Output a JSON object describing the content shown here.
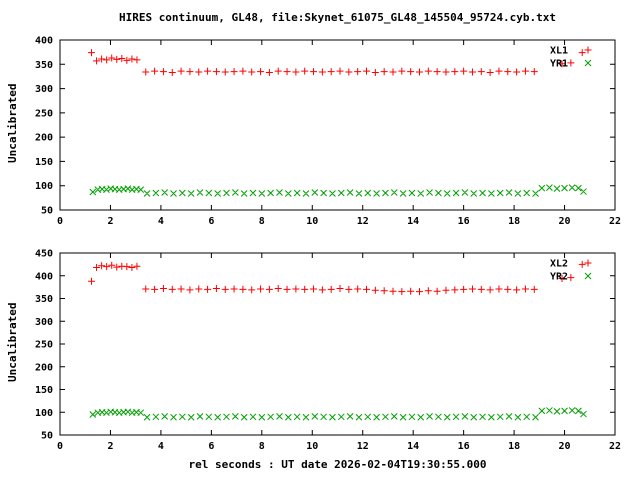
{
  "colors": {
    "background": "#ffffff",
    "text": "#000000",
    "red": "#ff0000",
    "green": "#00a000"
  },
  "chart_data": [
    {
      "type": "scatter",
      "title": "HIRES continuum, GL48, file:Skynet_61075_GL48_145504_95724.cyb.txt",
      "ylabel": "Uncalibrated",
      "xlim": [
        0,
        22
      ],
      "ylim": [
        50,
        400
      ],
      "xticks": [
        0,
        2,
        4,
        6,
        8,
        10,
        12,
        14,
        16,
        18,
        20,
        22
      ],
      "yticks": [
        50,
        100,
        150,
        200,
        250,
        300,
        350,
        400
      ],
      "grid": false,
      "legend_position": "top-right",
      "series": [
        {
          "name": "XL1",
          "color": "#ff0000",
          "marker": "plus",
          "x": [
            1.25,
            1.45,
            1.65,
            1.85,
            2.05,
            2.25,
            2.45,
            2.65,
            2.85,
            3.05,
            3.4,
            3.75,
            4.1,
            4.45,
            4.8,
            5.15,
            5.5,
            5.85,
            6.2,
            6.55,
            6.9,
            7.25,
            7.6,
            7.95,
            8.3,
            8.65,
            9.0,
            9.35,
            9.7,
            10.05,
            10.4,
            10.75,
            11.1,
            11.45,
            11.8,
            12.15,
            12.5,
            12.85,
            13.2,
            13.55,
            13.9,
            14.25,
            14.6,
            14.95,
            15.3,
            15.65,
            16.0,
            16.35,
            16.7,
            17.05,
            17.4,
            17.75,
            18.1,
            18.45,
            18.8,
            19.9,
            20.25,
            20.7
          ],
          "y": [
            374,
            357,
            361,
            359,
            363,
            360,
            362,
            358,
            361,
            359,
            334,
            336,
            335,
            333,
            336,
            335,
            334,
            336,
            335,
            334,
            335,
            336,
            334,
            335,
            333,
            336,
            335,
            334,
            336,
            335,
            334,
            335,
            336,
            334,
            335,
            336,
            333,
            335,
            334,
            336,
            335,
            334,
            336,
            335,
            334,
            335,
            336,
            334,
            335,
            333,
            336,
            335,
            334,
            336,
            335,
            351,
            353,
            374
          ]
        },
        {
          "name": "YR1",
          "color": "#00a000",
          "marker": "cross",
          "x": [
            1.3,
            1.5,
            1.67,
            1.84,
            2.01,
            2.18,
            2.35,
            2.52,
            2.69,
            2.86,
            3.03,
            3.2,
            3.45,
            3.8,
            4.15,
            4.5,
            4.85,
            5.2,
            5.55,
            5.9,
            6.25,
            6.6,
            6.95,
            7.3,
            7.65,
            8.0,
            8.35,
            8.7,
            9.05,
            9.4,
            9.75,
            10.1,
            10.45,
            10.8,
            11.15,
            11.5,
            11.85,
            12.2,
            12.55,
            12.9,
            13.25,
            13.6,
            13.95,
            14.3,
            14.65,
            15.0,
            15.35,
            15.7,
            16.05,
            16.4,
            16.75,
            17.1,
            17.45,
            17.8,
            18.15,
            18.5,
            18.85,
            19.1,
            19.4,
            19.7,
            20.0,
            20.3,
            20.55,
            20.75
          ],
          "y": [
            87,
            92,
            93,
            92,
            94,
            93,
            92,
            93,
            94,
            92,
            93,
            92,
            84,
            85,
            86,
            84,
            85,
            84,
            86,
            85,
            84,
            85,
            86,
            84,
            85,
            84,
            85,
            86,
            84,
            85,
            84,
            86,
            85,
            84,
            85,
            86,
            84,
            85,
            84,
            85,
            86,
            84,
            85,
            84,
            86,
            85,
            84,
            85,
            86,
            84,
            85,
            84,
            85,
            86,
            84,
            85,
            84,
            95,
            96,
            94,
            95,
            96,
            95,
            88
          ]
        }
      ]
    },
    {
      "type": "scatter",
      "xlabel": "rel seconds : UT date 2026-02-04T19:30:55.000",
      "ylabel": "Uncalibrated",
      "xlim": [
        0,
        22
      ],
      "ylim": [
        50,
        450
      ],
      "xticks": [
        0,
        2,
        4,
        6,
        8,
        10,
        12,
        14,
        16,
        18,
        20,
        22
      ],
      "yticks": [
        50,
        100,
        150,
        200,
        250,
        300,
        350,
        400,
        450
      ],
      "grid": false,
      "legend_position": "top-right",
      "series": [
        {
          "name": "XL2",
          "color": "#ff0000",
          "marker": "plus",
          "x": [
            1.25,
            1.45,
            1.65,
            1.85,
            2.05,
            2.25,
            2.45,
            2.65,
            2.85,
            3.05,
            3.4,
            3.75,
            4.1,
            4.45,
            4.8,
            5.15,
            5.5,
            5.85,
            6.2,
            6.55,
            6.9,
            7.25,
            7.6,
            7.95,
            8.3,
            8.65,
            9.0,
            9.35,
            9.7,
            10.05,
            10.4,
            10.75,
            11.1,
            11.45,
            11.8,
            12.15,
            12.5,
            12.85,
            13.2,
            13.55,
            13.9,
            14.25,
            14.6,
            14.95,
            15.3,
            15.65,
            16.0,
            16.35,
            16.7,
            17.05,
            17.4,
            17.75,
            18.1,
            18.45,
            18.8,
            19.9,
            20.25,
            20.7
          ],
          "y": [
            388,
            418,
            422,
            420,
            423,
            419,
            421,
            420,
            418,
            421,
            371,
            370,
            372,
            370,
            371,
            369,
            371,
            370,
            372,
            370,
            371,
            370,
            369,
            371,
            370,
            372,
            370,
            371,
            370,
            371,
            369,
            370,
            372,
            370,
            371,
            370,
            368,
            367,
            366,
            365,
            366,
            365,
            367,
            366,
            368,
            369,
            370,
            371,
            370,
            369,
            371,
            370,
            369,
            371,
            370,
            394,
            396,
            425
          ]
        },
        {
          "name": "YR2",
          "color": "#00a000",
          "marker": "cross",
          "x": [
            1.3,
            1.5,
            1.67,
            1.84,
            2.01,
            2.18,
            2.35,
            2.52,
            2.69,
            2.86,
            3.03,
            3.2,
            3.45,
            3.8,
            4.15,
            4.5,
            4.85,
            5.2,
            5.55,
            5.9,
            6.25,
            6.6,
            6.95,
            7.3,
            7.65,
            8.0,
            8.35,
            8.7,
            9.05,
            9.4,
            9.75,
            10.1,
            10.45,
            10.8,
            11.15,
            11.5,
            11.85,
            12.2,
            12.55,
            12.9,
            13.25,
            13.6,
            13.95,
            14.3,
            14.65,
            15.0,
            15.35,
            15.7,
            16.05,
            16.4,
            16.75,
            17.1,
            17.45,
            17.8,
            18.15,
            18.5,
            18.85,
            19.1,
            19.4,
            19.7,
            20.0,
            20.3,
            20.55,
            20.75
          ],
          "y": [
            95,
            99,
            100,
            99,
            101,
            100,
            99,
            100,
            101,
            99,
            100,
            99,
            89,
            90,
            91,
            89,
            90,
            89,
            91,
            90,
            89,
            90,
            91,
            89,
            90,
            89,
            90,
            91,
            89,
            90,
            89,
            91,
            90,
            89,
            90,
            91,
            89,
            90,
            89,
            90,
            91,
            89,
            90,
            89,
            91,
            90,
            89,
            90,
            91,
            89,
            90,
            89,
            90,
            91,
            89,
            90,
            89,
            103,
            104,
            102,
            103,
            104,
            103,
            96
          ]
        }
      ]
    }
  ]
}
